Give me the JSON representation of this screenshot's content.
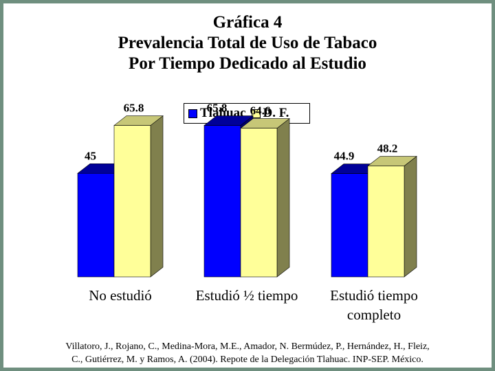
{
  "chart_data": {
    "type": "bar",
    "title_lines": [
      "Gráfica 4",
      "Prevalencia Total de Uso de Tabaco",
      "Por Tiempo Dedicado al Estudio"
    ],
    "categories": [
      "No estudió",
      "Estudió ½ tiempo",
      "Estudió tiempo completo"
    ],
    "category_lines": [
      [
        "No estudió"
      ],
      [
        "Estudió ½ tiempo"
      ],
      [
        "Estudió tiempo",
        "completo"
      ]
    ],
    "series": [
      {
        "name": "Tlahuac",
        "values": [
          45,
          65.8,
          44.9
        ],
        "labels": [
          "45",
          "65.8",
          "44.9"
        ],
        "color": "#0000ff"
      },
      {
        "name": "D. F.",
        "values": [
          65.8,
          64.6,
          48.2
        ],
        "labels": [
          "65.8",
          "64.6",
          "48.2"
        ],
        "color": "#ffff99"
      }
    ],
    "ylim": [
      0,
      70
    ],
    "grid": false,
    "legend": "top-center"
  },
  "source": {
    "line1": "Villatoro, J., Rojano, C., Medina-Mora, M.E., Amador, N. Bermúdez, P., Hernández, H., Fleiz,",
    "line2": "C., Gutiérrez, M. y Ramos, A. (2004). Repote de la Delegación Tlahuac. INP-SEP. México."
  }
}
